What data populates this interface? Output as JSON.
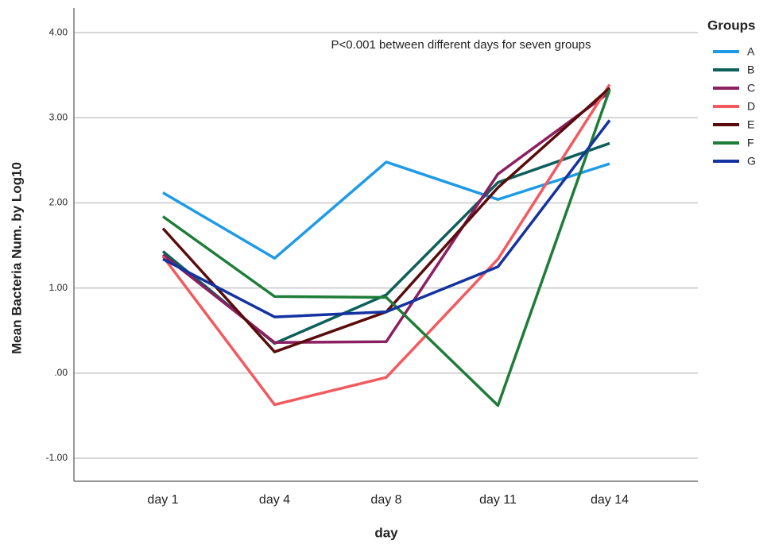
{
  "chart_data": {
    "type": "line",
    "annotation": "P<0.001 between different days for seven groups",
    "x_label": "day",
    "y_label": "Mean Bacteria Num. by Log10",
    "legend_title": "Groups",
    "legend_position": "right",
    "grid": true,
    "categories": [
      "day 1",
      "day 4",
      "day 8",
      "day 11",
      "day 14"
    ],
    "ylim": [
      -1.27,
      4.29
    ],
    "yticks": [
      {
        "value": -1,
        "label": "-1.00"
      },
      {
        "value": 0,
        "label": ".00"
      },
      {
        "value": 1,
        "label": "1.00"
      },
      {
        "value": 2,
        "label": "2.00"
      },
      {
        "value": 3,
        "label": "3.00"
      },
      {
        "value": 4,
        "label": "4.00"
      }
    ],
    "series": [
      {
        "name": "A",
        "color": "#1e9be6",
        "values": [
          2.12,
          1.35,
          2.48,
          2.04,
          2.46
        ]
      },
      {
        "name": "B",
        "color": "#0d5f5a",
        "values": [
          1.43,
          0.35,
          0.92,
          2.24,
          2.7
        ]
      },
      {
        "name": "C",
        "color": "#8b1f5f",
        "values": [
          1.39,
          0.36,
          0.37,
          2.34,
          3.3
        ]
      },
      {
        "name": "D",
        "color": "#f25a5f",
        "values": [
          1.37,
          -0.37,
          -0.05,
          1.34,
          3.39
        ]
      },
      {
        "name": "E",
        "color": "#5a0c0c",
        "values": [
          1.7,
          0.25,
          0.72,
          2.18,
          3.35
        ]
      },
      {
        "name": "F",
        "color": "#1e7d38",
        "values": [
          1.84,
          0.9,
          0.89,
          -0.38,
          3.33
        ]
      },
      {
        "name": "G",
        "color": "#1433a0",
        "values": [
          1.34,
          0.66,
          0.72,
          1.25,
          2.97
        ]
      }
    ]
  }
}
